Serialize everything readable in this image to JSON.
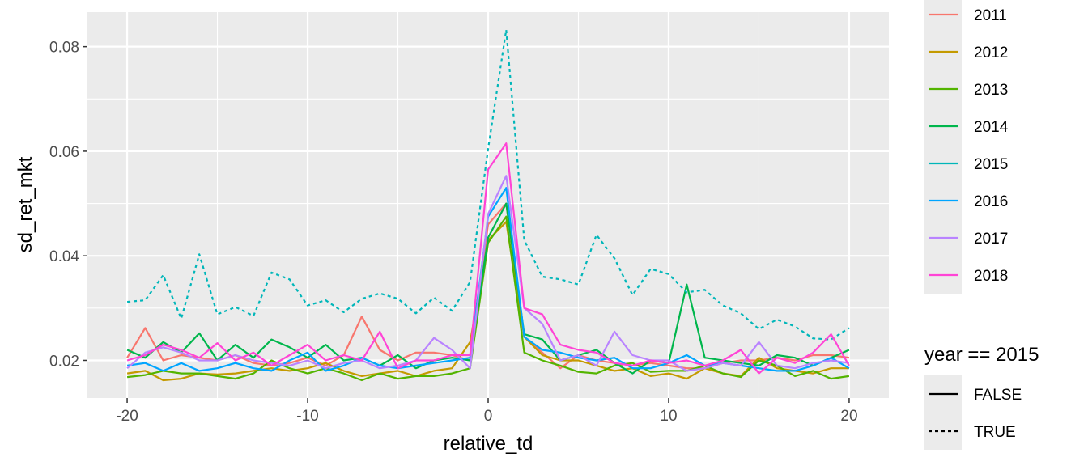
{
  "chart_data": {
    "type": "line",
    "xlabel": "relative_td",
    "ylabel": "sd_ret_mkt",
    "xlim": [
      -22.2,
      22.2
    ],
    "ylim": [
      0.0128,
      0.0866
    ],
    "x_ticks": [
      -20,
      -10,
      0,
      10,
      20
    ],
    "x_tick_labels": [
      "-20",
      "-10",
      "0",
      "10",
      "20"
    ],
    "y_ticks": [
      0.02,
      0.04,
      0.06,
      0.08
    ],
    "y_tick_labels": [
      "0.02",
      "0.04",
      "0.06",
      "0.08"
    ],
    "grid": true,
    "legend_placement": "right",
    "colors": {
      "panel_bg": "#EBEBEB",
      "grid": "#FFFFFF",
      "legend_key_bg": "#EBEBEB"
    },
    "color_legend": {
      "title": "",
      "entries": [
        "2011",
        "2012",
        "2013",
        "2014",
        "2015",
        "2016",
        "2017",
        "2018"
      ]
    },
    "linetype_legend": {
      "title": "year == 2015",
      "entries": [
        {
          "label": "FALSE",
          "dash": "solid"
        },
        {
          "label": "TRUE",
          "dash": "dotted"
        }
      ]
    },
    "x": [
      -20,
      -19,
      -18,
      -17,
      -16,
      -15,
      -14,
      -13,
      -12,
      -11,
      -10,
      -9,
      -8,
      -7,
      -6,
      -5,
      -4,
      -3,
      -2,
      -1,
      0,
      1,
      2,
      3,
      4,
      5,
      6,
      7,
      8,
      9,
      10,
      11,
      12,
      13,
      14,
      15,
      16,
      17,
      18,
      19,
      20
    ],
    "series": [
      {
        "name": "2011",
        "color": "#F8766D",
        "dashed": false,
        "values": [
          0.0205,
          0.0262,
          0.02,
          0.021,
          0.0205,
          0.02,
          0.021,
          0.0195,
          0.019,
          0.0195,
          0.0205,
          0.019,
          0.021,
          0.0284,
          0.022,
          0.02,
          0.0215,
          0.0215,
          0.021,
          0.02,
          0.046,
          0.05,
          0.0245,
          0.0215,
          0.0185,
          0.021,
          0.02,
          0.0195,
          0.019,
          0.0195,
          0.019,
          0.0185,
          0.0185,
          0.0195,
          0.02,
          0.02,
          0.0205,
          0.02,
          0.021,
          0.021,
          0.0205
        ]
      },
      {
        "name": "2012",
        "color": "#C49A00",
        "dashed": false,
        "values": [
          0.0175,
          0.018,
          0.0162,
          0.0165,
          0.0175,
          0.0173,
          0.0175,
          0.018,
          0.0185,
          0.018,
          0.0185,
          0.0195,
          0.018,
          0.017,
          0.0175,
          0.018,
          0.017,
          0.018,
          0.0185,
          0.0235,
          0.043,
          0.0465,
          0.0245,
          0.021,
          0.02,
          0.02,
          0.019,
          0.018,
          0.0185,
          0.017,
          0.0175,
          0.0165,
          0.0185,
          0.0175,
          0.017,
          0.0205,
          0.0185,
          0.018,
          0.0175,
          0.0185,
          0.0185
        ]
      },
      {
        "name": "2013",
        "color": "#53B400",
        "dashed": false,
        "values": [
          0.0168,
          0.0172,
          0.018,
          0.0175,
          0.0175,
          0.017,
          0.0165,
          0.0175,
          0.02,
          0.0185,
          0.0175,
          0.0185,
          0.0175,
          0.0162,
          0.0175,
          0.0165,
          0.017,
          0.017,
          0.0175,
          0.0185,
          0.0425,
          0.0475,
          0.0215,
          0.02,
          0.019,
          0.0178,
          0.0175,
          0.019,
          0.0195,
          0.0178,
          0.018,
          0.018,
          0.019,
          0.0175,
          0.0168,
          0.02,
          0.019,
          0.017,
          0.018,
          0.0165,
          0.017
        ]
      },
      {
        "name": "2014",
        "color": "#00B64C",
        "dashed": false,
        "values": [
          0.022,
          0.0205,
          0.0235,
          0.0215,
          0.0252,
          0.02,
          0.023,
          0.0205,
          0.024,
          0.0225,
          0.0205,
          0.023,
          0.02,
          0.0205,
          0.019,
          0.021,
          0.0185,
          0.02,
          0.0205,
          0.02,
          0.0435,
          0.05,
          0.025,
          0.024,
          0.02,
          0.021,
          0.022,
          0.0195,
          0.0175,
          0.02,
          0.0195,
          0.0345,
          0.0205,
          0.02,
          0.0195,
          0.019,
          0.021,
          0.0205,
          0.019,
          0.0205,
          0.022
        ]
      },
      {
        "name": "2015",
        "color": "#00B6B9",
        "dashed": true,
        "values": [
          0.0312,
          0.0315,
          0.0363,
          0.028,
          0.0403,
          0.0288,
          0.0302,
          0.0285,
          0.0368,
          0.0355,
          0.0305,
          0.0315,
          0.0292,
          0.0318,
          0.0328,
          0.0318,
          0.029,
          0.032,
          0.0295,
          0.035,
          0.0605,
          0.0832,
          0.043,
          0.036,
          0.0355,
          0.0345,
          0.044,
          0.0395,
          0.0325,
          0.0375,
          0.0365,
          0.033,
          0.0335,
          0.0305,
          0.029,
          0.026,
          0.0278,
          0.0265,
          0.0242,
          0.024,
          0.0262
        ]
      },
      {
        "name": "2016",
        "color": "#00A5FF",
        "dashed": false,
        "values": [
          0.019,
          0.0195,
          0.018,
          0.0195,
          0.018,
          0.0185,
          0.0195,
          0.0185,
          0.018,
          0.02,
          0.0215,
          0.018,
          0.019,
          0.0205,
          0.019,
          0.0185,
          0.019,
          0.0195,
          0.02,
          0.0205,
          0.0475,
          0.053,
          0.0245,
          0.022,
          0.0215,
          0.0205,
          0.02,
          0.0205,
          0.0185,
          0.0185,
          0.0195,
          0.021,
          0.019,
          0.0195,
          0.019,
          0.0185,
          0.018,
          0.018,
          0.019,
          0.0205,
          0.0185
        ]
      },
      {
        "name": "2017",
        "color": "#B983FF",
        "dashed": false,
        "values": [
          0.0185,
          0.0215,
          0.0225,
          0.0215,
          0.02,
          0.02,
          0.021,
          0.02,
          0.0195,
          0.019,
          0.02,
          0.0185,
          0.0195,
          0.02,
          0.0185,
          0.019,
          0.02,
          0.0243,
          0.022,
          0.0185,
          0.048,
          0.0553,
          0.03,
          0.027,
          0.02,
          0.021,
          0.019,
          0.0255,
          0.021,
          0.02,
          0.02,
          0.018,
          0.0185,
          0.0195,
          0.019,
          0.0235,
          0.019,
          0.0185,
          0.0195,
          0.02,
          0.0195
        ]
      },
      {
        "name": "2018",
        "color": "#FF44D6",
        "dashed": false,
        "values": [
          0.02,
          0.021,
          0.023,
          0.022,
          0.0205,
          0.0233,
          0.02,
          0.0215,
          0.019,
          0.021,
          0.023,
          0.02,
          0.021,
          0.02,
          0.0255,
          0.0185,
          0.02,
          0.02,
          0.021,
          0.021,
          0.0565,
          0.0615,
          0.03,
          0.0288,
          0.023,
          0.022,
          0.0215,
          0.0195,
          0.019,
          0.02,
          0.0195,
          0.02,
          0.019,
          0.02,
          0.022,
          0.0175,
          0.0205,
          0.0195,
          0.0215,
          0.025,
          0.019
        ]
      }
    ]
  }
}
